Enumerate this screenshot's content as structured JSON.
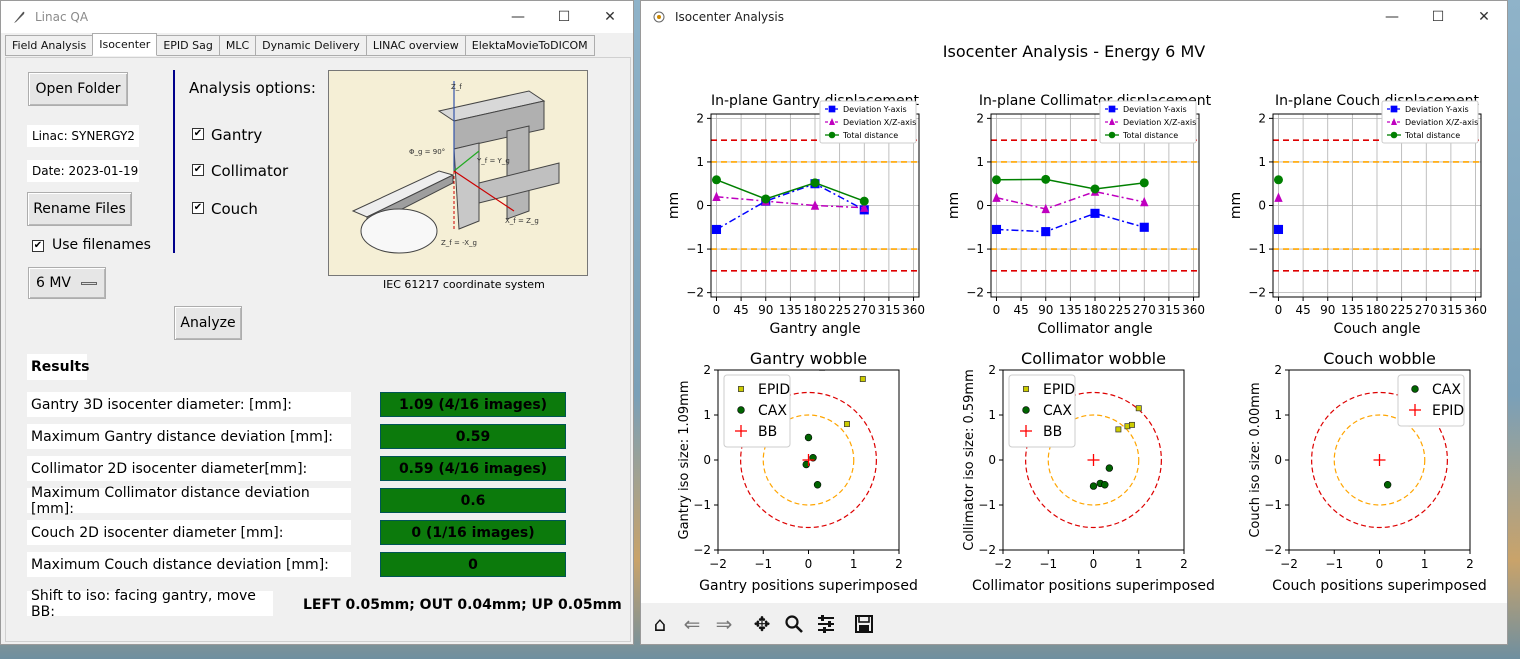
{
  "left_window": {
    "title": "Linac QA",
    "tabs": [
      "Field Analysis",
      "Isocenter",
      "EPID Sag",
      "MLC",
      "Dynamic Delivery",
      "LINAC overview",
      "ElektaMovieToDICOM"
    ],
    "active_tab": "Isocenter",
    "open_folder": "Open Folder",
    "linac": "Linac: SYNERGY2",
    "date": "Date: 2023-01-19",
    "rename_files": "Rename Files",
    "use_filenames": "Use filenames",
    "energy_select": "6 MV",
    "analysis_options": "Analysis options:",
    "options": [
      {
        "label": "Gantry",
        "checked": true
      },
      {
        "label": "Collimator",
        "checked": true
      },
      {
        "label": "Couch",
        "checked": true
      }
    ],
    "analyze": "Analyze",
    "diagram": {
      "caption": "IEC 61217 coordinate system",
      "labels": [
        "Z_f",
        "Φ_g = 90°",
        "Y_f = Y_g",
        "X_f = Z_g",
        "Z_f = -X_g"
      ]
    },
    "results_title": "Results",
    "results": [
      {
        "label": "Gantry 3D isocenter diameter: [mm]:",
        "value": "1.09 (4/16 images)"
      },
      {
        "label": "Maximum Gantry distance deviation [mm]:",
        "value": "0.59"
      },
      {
        "label": "Collimator 2D isocenter diameter[mm]:",
        "value": "0.59 (4/16 images)"
      },
      {
        "label": "Maximum Collimator distance deviation [mm]:",
        "value": "0.6"
      },
      {
        "label": "Couch 2D isocenter diameter [mm]:",
        "value": "0 (1/16 images)"
      },
      {
        "label": "Maximum Couch distance deviation [mm]:",
        "value": "0"
      }
    ],
    "shift_label": "Shift to iso: facing gantry, move BB:",
    "shift_value": "LEFT 0.05mm; OUT 0.04mm; UP 0.05mm"
  },
  "right_window": {
    "title": "Isocenter Analysis",
    "suptitle": "Isocenter Analysis - Energy  6 MV",
    "toolbar": [
      "home-icon",
      "back-icon",
      "forward-icon",
      "pan-icon",
      "zoom-icon",
      "configure-icon",
      "save-icon"
    ]
  },
  "colors": {
    "result_green": "#0c7a0c",
    "series_y": "#0000ff",
    "series_xz": "#bf00bf",
    "series_total": "#008000",
    "tol_red": "#dd0000",
    "tol_orange": "#ffa500"
  },
  "chart_data": [
    {
      "type": "line",
      "title": "In-plane Gantry displacement",
      "xlabel": "Gantry angle",
      "ylabel": "mm",
      "xticks": [
        0,
        45,
        90,
        135,
        180,
        225,
        270,
        315,
        360
      ],
      "yticks": [
        -2,
        -1,
        0,
        1,
        2
      ],
      "xlim": [
        -10,
        370
      ],
      "ylim": [
        -2.1,
        2.1
      ],
      "grid": true,
      "legend": "top-right",
      "hlines": [
        {
          "y": 1.5,
          "color": "#dd0000"
        },
        {
          "y": -1.5,
          "color": "#dd0000"
        },
        {
          "y": 1,
          "color": "#ffa500"
        },
        {
          "y": -1,
          "color": "#ffa500"
        }
      ],
      "x": [
        0,
        90,
        180,
        270
      ],
      "series": [
        {
          "name": "Deviation Y-axis",
          "values": [
            -0.55,
            0.1,
            0.5,
            -0.1
          ],
          "color": "#0000ff",
          "marker": "square",
          "style": "dashdot"
        },
        {
          "name": "Deviation X/Z-axis",
          "values": [
            0.2,
            0.1,
            0.0,
            -0.05
          ],
          "color": "#bf00bf",
          "marker": "triangle",
          "style": "dashdot"
        },
        {
          "name": "Total distance",
          "values": [
            0.59,
            0.15,
            0.52,
            0.1
          ],
          "color": "#008000",
          "marker": "circle",
          "style": "solid"
        }
      ]
    },
    {
      "type": "line",
      "title": "In-plane Collimator displacement",
      "xlabel": "Collimator angle",
      "ylabel": "mm",
      "xticks": [
        0,
        45,
        90,
        135,
        180,
        225,
        270,
        315,
        360
      ],
      "yticks": [
        -2,
        -1,
        0,
        1,
        2
      ],
      "xlim": [
        -10,
        370
      ],
      "ylim": [
        -2.1,
        2.1
      ],
      "grid": true,
      "legend": "top-right",
      "hlines": [
        {
          "y": 1.5,
          "color": "#dd0000"
        },
        {
          "y": -1.5,
          "color": "#dd0000"
        },
        {
          "y": 1,
          "color": "#ffa500"
        },
        {
          "y": -1,
          "color": "#ffa500"
        }
      ],
      "x": [
        0,
        90,
        180,
        270
      ],
      "series": [
        {
          "name": "Deviation Y-axis",
          "values": [
            -0.55,
            -0.6,
            -0.18,
            -0.5
          ],
          "color": "#0000ff",
          "marker": "square",
          "style": "dashdot"
        },
        {
          "name": "Deviation X/Z-axis",
          "values": [
            0.18,
            -0.08,
            0.32,
            0.08
          ],
          "color": "#bf00bf",
          "marker": "triangle",
          "style": "dashdot"
        },
        {
          "name": "Total distance",
          "values": [
            0.59,
            0.6,
            0.38,
            0.52
          ],
          "color": "#008000",
          "marker": "circle",
          "style": "solid"
        }
      ]
    },
    {
      "type": "line",
      "title": "In-plane Couch displacement",
      "xlabel": "Couch angle",
      "ylabel": "mm",
      "xticks": [
        0,
        45,
        90,
        135,
        180,
        225,
        270,
        315,
        360
      ],
      "yticks": [
        -2,
        -1,
        0,
        1,
        2
      ],
      "xlim": [
        -10,
        370
      ],
      "ylim": [
        -2.1,
        2.1
      ],
      "grid": true,
      "legend": "top-right",
      "hlines": [
        {
          "y": 1.5,
          "color": "#dd0000"
        },
        {
          "y": -1.5,
          "color": "#dd0000"
        },
        {
          "y": 1,
          "color": "#ffa500"
        },
        {
          "y": -1,
          "color": "#ffa500"
        }
      ],
      "x": [
        0
      ],
      "series": [
        {
          "name": "Deviation Y-axis",
          "values": [
            -0.55
          ],
          "color": "#0000ff",
          "marker": "square",
          "style": "dashdot"
        },
        {
          "name": "Deviation X/Z-axis",
          "values": [
            0.18
          ],
          "color": "#bf00bf",
          "marker": "triangle",
          "style": "dashdot"
        },
        {
          "name": "Total distance",
          "values": [
            0.59
          ],
          "color": "#008000",
          "marker": "circle",
          "style": "solid"
        }
      ]
    },
    {
      "type": "scatter",
      "title": "Gantry wobble",
      "xlabel": "Gantry positions superimposed",
      "ylabel": "Gantry iso size: 1.09mm",
      "xlim": [
        -2,
        2
      ],
      "ylim": [
        -2,
        2
      ],
      "ticks": [
        -2,
        -1,
        0,
        1,
        2
      ],
      "legend": "top-left",
      "circles": [
        {
          "r": 1.0,
          "color": "#ffa500"
        },
        {
          "r": 1.5,
          "color": "#dd0000"
        }
      ],
      "series": [
        {
          "name": "EPID",
          "type": "square",
          "color": "#cccc00",
          "points": [
            [
              0.3,
              2.05
            ],
            [
              1.2,
              1.8
            ],
            [
              0.85,
              0.8
            ]
          ]
        },
        {
          "name": "CAX",
          "type": "circle",
          "color": "#006400",
          "points": [
            [
              0.0,
              0.5
            ],
            [
              0.1,
              0.05
            ],
            [
              0.2,
              -0.55
            ],
            [
              -0.05,
              -0.1
            ]
          ]
        },
        {
          "name": "BB",
          "type": "plus",
          "color": "#ff0000",
          "points": [
            [
              0,
              0
            ]
          ]
        }
      ]
    },
    {
      "type": "scatter",
      "title": "Collimator wobble",
      "xlabel": "Collimator positions superimposed",
      "ylabel": "Collimator iso size: 0.59mm",
      "xlim": [
        -2,
        2
      ],
      "ylim": [
        -2,
        2
      ],
      "ticks": [
        -2,
        -1,
        0,
        1,
        2
      ],
      "legend": "top-left",
      "circles": [
        {
          "r": 1.0,
          "color": "#ffa500"
        },
        {
          "r": 1.5,
          "color": "#dd0000"
        }
      ],
      "series": [
        {
          "name": "EPID",
          "type": "square",
          "color": "#cccc00",
          "points": [
            [
              1.0,
              1.15
            ],
            [
              0.75,
              0.75
            ],
            [
              0.85,
              0.78
            ],
            [
              0.55,
              0.68
            ]
          ]
        },
        {
          "name": "CAX",
          "type": "circle",
          "color": "#006400",
          "points": [
            [
              0.35,
              -0.18
            ],
            [
              0.15,
              -0.52
            ],
            [
              0.25,
              -0.55
            ],
            [
              0.0,
              -0.58
            ]
          ]
        },
        {
          "name": "BB",
          "type": "plus",
          "color": "#ff0000",
          "points": [
            [
              0,
              0
            ]
          ]
        }
      ]
    },
    {
      "type": "scatter",
      "title": "Couch wobble",
      "xlabel": "Couch positions superimposed",
      "ylabel": "Couch iso size: 0.00mm",
      "xlim": [
        -2,
        2
      ],
      "ylim": [
        -2,
        2
      ],
      "ticks": [
        -2,
        -1,
        0,
        1,
        2
      ],
      "legend": "top-right",
      "circles": [
        {
          "r": 1.0,
          "color": "#ffa500"
        },
        {
          "r": 1.5,
          "color": "#dd0000"
        }
      ],
      "series": [
        {
          "name": "CAX",
          "type": "circle",
          "color": "#006400",
          "points": [
            [
              0.18,
              -0.55
            ]
          ]
        },
        {
          "name": "EPID",
          "type": "plus",
          "color": "#ff0000",
          "points": [
            [
              0,
              0
            ]
          ]
        }
      ]
    }
  ]
}
